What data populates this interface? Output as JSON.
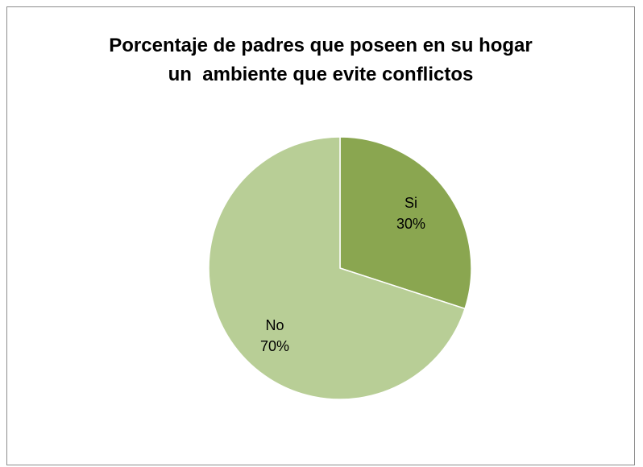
{
  "chart_data": {
    "type": "pie",
    "title_lines": [
      "Porcentaje de padres que poseen en su hogar",
      "un  ambiente que evite conflictos"
    ],
    "categories": [
      "Si",
      "No"
    ],
    "values": [
      30,
      70
    ],
    "value_labels": [
      "30%",
      "70%"
    ],
    "colors": [
      "#8aa650",
      "#b8ce96"
    ],
    "legend": "none"
  }
}
